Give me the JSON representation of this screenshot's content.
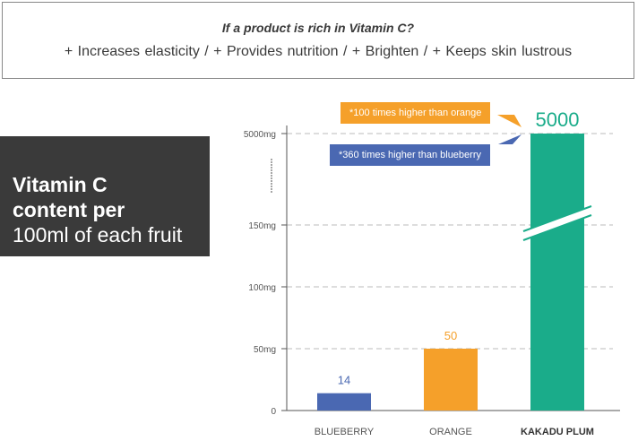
{
  "info": {
    "title": "If a product is rich in Vitamin C?",
    "benefits": "+ Increases elasticity  /  + Provides nutrition  /  + Brighten  /  + Keeps skin lustrous"
  },
  "side_label": {
    "line1": "Vitamin C",
    "line2": "content per",
    "line3": "100ml of each fruit"
  },
  "notes": {
    "orange": "*100 times higher than orange",
    "blueberry": "*360 times higher than blueberry"
  },
  "colors": {
    "blueberry": "#4a68b2",
    "orange": "#f5a02a",
    "kakadu": "#1aac8a",
    "grid": "#bbbbbb",
    "text": "#555555"
  },
  "chart_data": {
    "type": "bar",
    "categories": [
      "BLUEBERRY",
      "ORANGE",
      "KAKADU PLUM"
    ],
    "values": [
      14,
      50,
      5000
    ],
    "value_labels": [
      "14",
      "50",
      "5000"
    ],
    "y_ticks": [
      "0",
      "50mg",
      "100mg",
      "150mg",
      "5000mg"
    ],
    "y_tick_values": [
      0,
      50,
      100,
      150,
      5000
    ],
    "axis_break": "between 150mg and 5000mg",
    "grid": true,
    "title": "",
    "xlabel": "",
    "ylabel": ""
  }
}
